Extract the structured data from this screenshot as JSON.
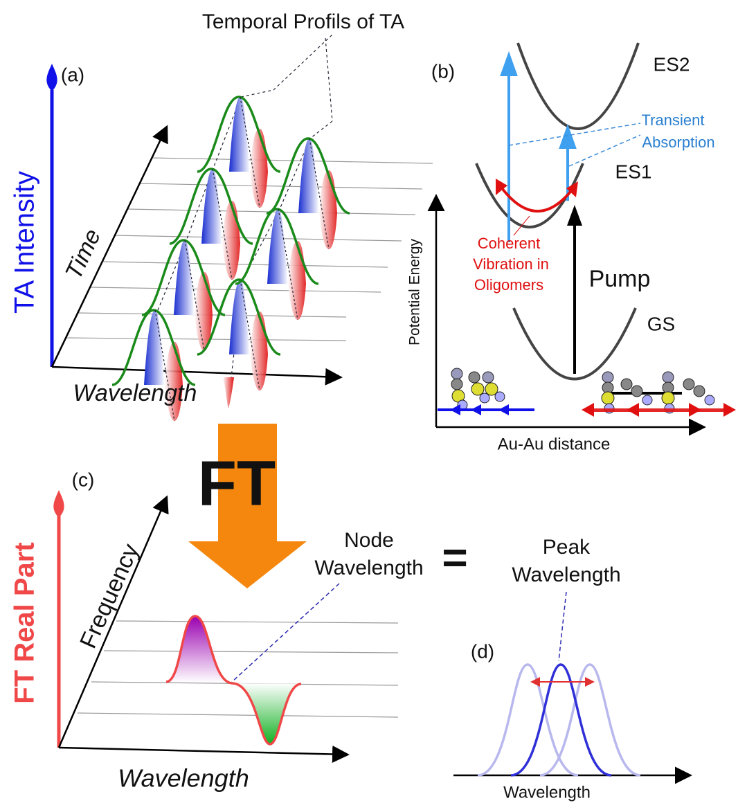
{
  "panel_a": {
    "label": "(a)",
    "title": "Temporal Profils of TA",
    "y_axis": "TA Intensity",
    "depth_axis": "Time",
    "x_axis": "Wavelength"
  },
  "panel_b": {
    "label": "(b)",
    "states": [
      "ES2",
      "ES1",
      "GS"
    ],
    "probe": [
      "Transient",
      "Absorption"
    ],
    "vibration": [
      "Coherent",
      "Vibration in",
      "Oligomers"
    ],
    "pump": "Pump",
    "y_axis": "Potential Energy",
    "x_axis": "Au-Au distance"
  },
  "transform": "FT",
  "panel_c": {
    "label": "(c)",
    "y_axis": "FT Real Part",
    "depth_axis": "Frequency",
    "x_axis": "Wavelength",
    "node": [
      "Node",
      "Wavelength"
    ]
  },
  "equals": "=",
  "panel_d": {
    "label": "(d)",
    "peak": [
      "Peak",
      "Wavelength"
    ],
    "x_axis": "Wavelength"
  }
}
